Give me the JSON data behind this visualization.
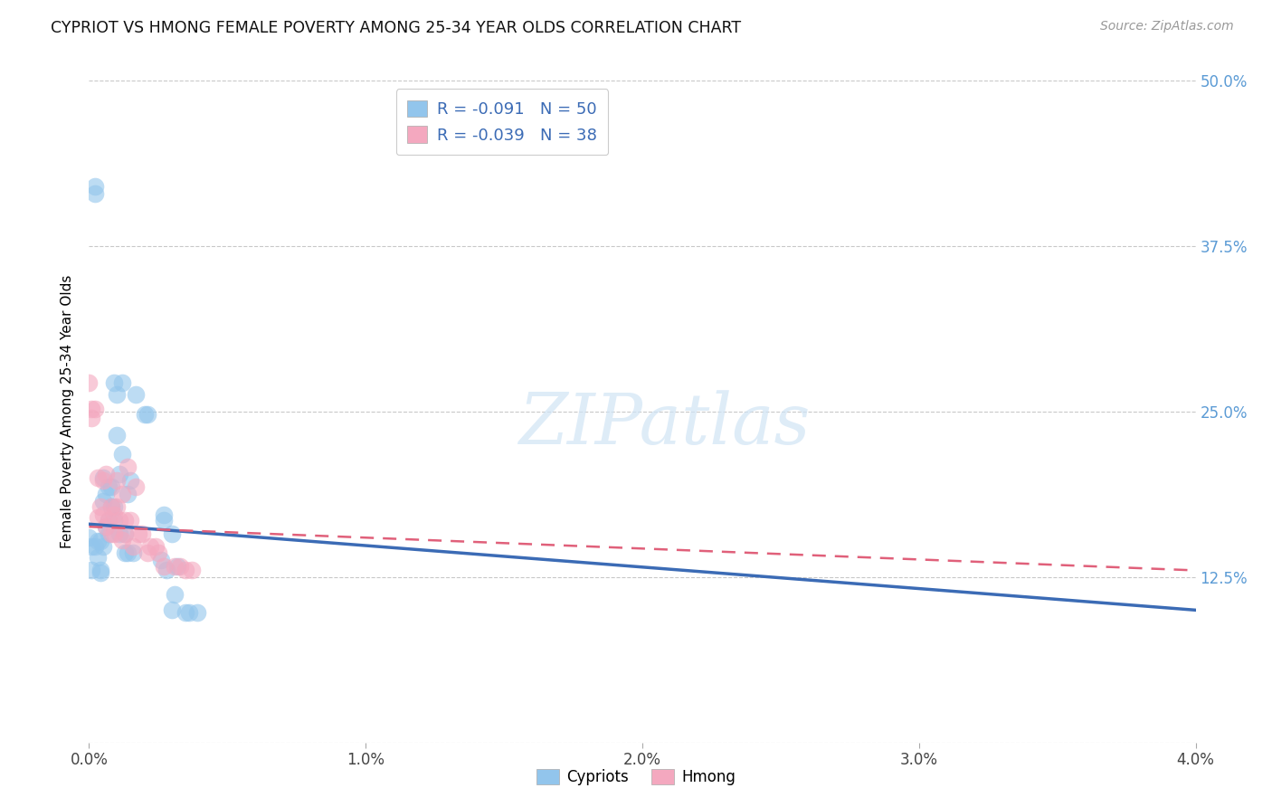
{
  "title": "CYPRIOT VS HMONG FEMALE POVERTY AMONG 25-34 YEAR OLDS CORRELATION CHART",
  "source": "Source: ZipAtlas.com",
  "ylabel_label": "Female Poverty Among 25-34 Year Olds",
  "xlim": [
    0.0,
    0.04
  ],
  "ylim": [
    0.0,
    0.5
  ],
  "xticks": [
    0.0,
    0.01,
    0.02,
    0.03,
    0.04
  ],
  "yticks": [
    0.0,
    0.125,
    0.25,
    0.375,
    0.5
  ],
  "xtick_labels": [
    "0.0%",
    "1.0%",
    "2.0%",
    "3.0%",
    "4.0%"
  ],
  "ytick_labels_right": [
    "",
    "12.5%",
    "25.0%",
    "37.5%",
    "50.0%"
  ],
  "cypriot_color": "#92C5EC",
  "hmong_color": "#F4A8BF",
  "cypriot_line_color": "#3B6BB5",
  "hmong_line_color": "#E0607A",
  "legend_R_cypriot": "-0.091",
  "legend_N_cypriot": "50",
  "legend_R_hmong": "-0.039",
  "legend_N_hmong": "38",
  "watermark": "ZIPatlas",
  "cypriot_x": [
    0.0,
    0.0001,
    0.0001,
    0.0002,
    0.0002,
    0.0002,
    0.0003,
    0.0003,
    0.0004,
    0.0004,
    0.0004,
    0.0005,
    0.0005,
    0.0005,
    0.0006,
    0.0006,
    0.0007,
    0.0007,
    0.0007,
    0.0008,
    0.0008,
    0.0009,
    0.0009,
    0.0009,
    0.001,
    0.001,
    0.0011,
    0.0011,
    0.0012,
    0.0012,
    0.0013,
    0.0013,
    0.0014,
    0.0014,
    0.0015,
    0.0016,
    0.0017,
    0.002,
    0.0021,
    0.0026,
    0.0027,
    0.0028,
    0.003,
    0.0031,
    0.0032,
    0.0027,
    0.003,
    0.0035,
    0.0036,
    0.0039
  ],
  "cypriot_y": [
    0.155,
    0.148,
    0.13,
    0.42,
    0.415,
    0.148,
    0.14,
    0.152,
    0.13,
    0.152,
    0.128,
    0.2,
    0.182,
    0.148,
    0.163,
    0.188,
    0.193,
    0.168,
    0.158,
    0.193,
    0.178,
    0.272,
    0.178,
    0.168,
    0.263,
    0.232,
    0.203,
    0.158,
    0.272,
    0.218,
    0.158,
    0.143,
    0.188,
    0.143,
    0.198,
    0.143,
    0.263,
    0.248,
    0.248,
    0.138,
    0.172,
    0.13,
    0.158,
    0.112,
    0.133,
    0.168,
    0.1,
    0.098,
    0.098,
    0.098
  ],
  "hmong_x": [
    0.0,
    0.0001,
    0.0001,
    0.0002,
    0.0003,
    0.0003,
    0.0004,
    0.0005,
    0.0005,
    0.0006,
    0.0006,
    0.0007,
    0.0008,
    0.0008,
    0.0009,
    0.0009,
    0.001,
    0.001,
    0.0011,
    0.0012,
    0.0012,
    0.0013,
    0.0013,
    0.0014,
    0.0015,
    0.0016,
    0.0017,
    0.0018,
    0.0019,
    0.0021,
    0.0022,
    0.0024,
    0.0025,
    0.0027,
    0.0031,
    0.0033,
    0.0035,
    0.0037
  ],
  "hmong_y": [
    0.272,
    0.252,
    0.245,
    0.252,
    0.2,
    0.17,
    0.178,
    0.198,
    0.172,
    0.163,
    0.203,
    0.168,
    0.178,
    0.158,
    0.172,
    0.158,
    0.198,
    0.178,
    0.168,
    0.153,
    0.188,
    0.168,
    0.158,
    0.208,
    0.168,
    0.148,
    0.193,
    0.158,
    0.158,
    0.143,
    0.148,
    0.148,
    0.143,
    0.133,
    0.133,
    0.133,
    0.13,
    0.13
  ],
  "cyp_trend_x0": 0.0,
  "cyp_trend_x1": 0.04,
  "cyp_trend_y0": 0.165,
  "cyp_trend_y1": 0.1,
  "hmong_trend_x0": 0.0,
  "hmong_trend_x1": 0.04,
  "hmong_trend_y0": 0.163,
  "hmong_trend_y1": 0.13
}
